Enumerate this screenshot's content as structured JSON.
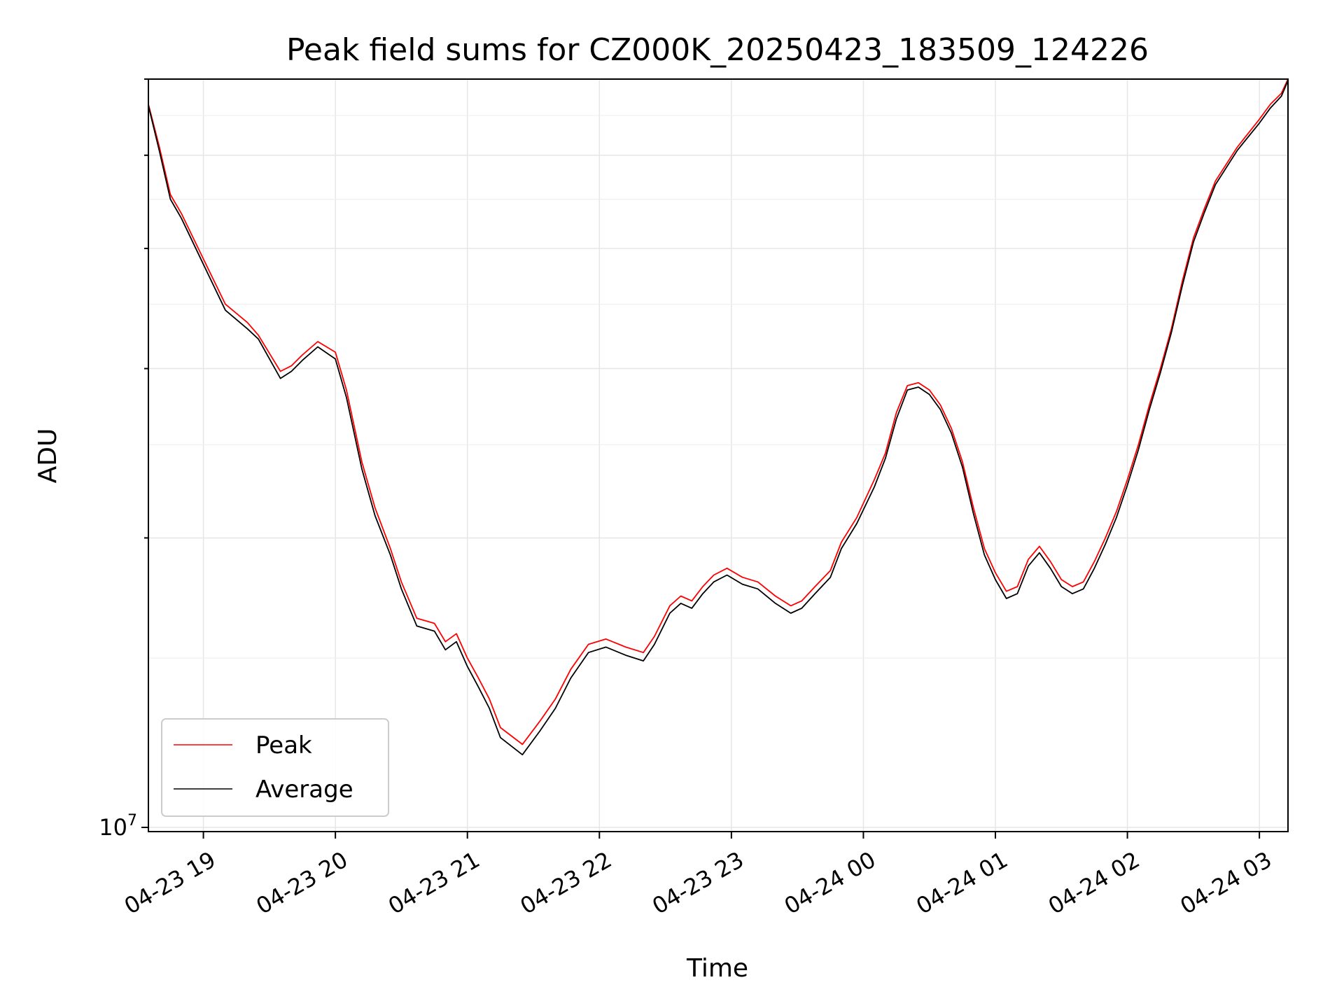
{
  "chart_data": {
    "type": "line",
    "title": "Peak field sums for CZ000K_20250423_183509_124226",
    "xlabel": "Time",
    "ylabel": "ADU",
    "y_scale": "log",
    "ylim": [
      9900000,
      60000000
    ],
    "xlim": [
      "2025-04-23 18:35",
      "2025-04-24 03:13"
    ],
    "grid": true,
    "legend_position": "lower-left",
    "x_ticks": [
      "04-23 19",
      "04-23 20",
      "04-23 21",
      "04-23 22",
      "04-23 23",
      "04-24 00",
      "04-24 01",
      "04-24 02",
      "04-24 03"
    ],
    "y_tick_labels": [
      "10^7"
    ],
    "series": [
      {
        "name": "Peak",
        "color": "#ff0000",
        "x": [
          "2025-04-23 18:35",
          "2025-04-23 18:40",
          "2025-04-23 18:45",
          "2025-04-23 18:50",
          "2025-04-23 19:00",
          "2025-04-23 19:10",
          "2025-04-23 19:20",
          "2025-04-23 19:25",
          "2025-04-23 19:35",
          "2025-04-23 19:40",
          "2025-04-23 19:45",
          "2025-04-23 19:52",
          "2025-04-23 20:00",
          "2025-04-23 20:05",
          "2025-04-23 20:12",
          "2025-04-23 20:18",
          "2025-04-23 20:25",
          "2025-04-23 20:30",
          "2025-04-23 20:37",
          "2025-04-23 20:45",
          "2025-04-23 20:50",
          "2025-04-23 20:55",
          "2025-04-23 21:00",
          "2025-04-23 21:05",
          "2025-04-23 21:10",
          "2025-04-23 21:15",
          "2025-04-23 21:25",
          "2025-04-23 21:33",
          "2025-04-23 21:40",
          "2025-04-23 21:47",
          "2025-04-23 21:55",
          "2025-04-23 22:03",
          "2025-04-23 22:12",
          "2025-04-23 22:20",
          "2025-04-23 22:25",
          "2025-04-23 22:32",
          "2025-04-23 22:37",
          "2025-04-23 22:42",
          "2025-04-23 22:47",
          "2025-04-23 22:52",
          "2025-04-23 22:58",
          "2025-04-23 23:05",
          "2025-04-23 23:12",
          "2025-04-23 23:20",
          "2025-04-23 23:27",
          "2025-04-23 23:32",
          "2025-04-23 23:38",
          "2025-04-23 23:45",
          "2025-04-23 23:50",
          "2025-04-23 23:57",
          "2025-04-24 00:05",
          "2025-04-24 00:10",
          "2025-04-24 00:15",
          "2025-04-24 00:20",
          "2025-04-24 00:25",
          "2025-04-24 00:30",
          "2025-04-24 00:35",
          "2025-04-24 00:40",
          "2025-04-24 00:45",
          "2025-04-24 00:50",
          "2025-04-24 00:55",
          "2025-04-24 01:00",
          "2025-04-24 01:05",
          "2025-04-24 01:10",
          "2025-04-24 01:15",
          "2025-04-24 01:20",
          "2025-04-24 01:25",
          "2025-04-24 01:30",
          "2025-04-24 01:35",
          "2025-04-24 01:40",
          "2025-04-24 01:45",
          "2025-04-24 01:50",
          "2025-04-24 01:55",
          "2025-04-24 02:00",
          "2025-04-24 02:05",
          "2025-04-24 02:10",
          "2025-04-24 02:15",
          "2025-04-24 02:20",
          "2025-04-24 02:25",
          "2025-04-24 02:30",
          "2025-04-24 02:35",
          "2025-04-24 02:40",
          "2025-04-24 02:50",
          "2025-04-24 03:00",
          "2025-04-24 03:05",
          "2025-04-24 03:10",
          "2025-04-24 03:13"
        ],
        "values": [
          56500000,
          51000000,
          45500000,
          43500000,
          39000000,
          35000000,
          33500000,
          32500000,
          29800000,
          30200000,
          31000000,
          32000000,
          31200000,
          28500000,
          24000000,
          21500000,
          19500000,
          18000000,
          16500000,
          16300000,
          15600000,
          15900000,
          15000000,
          14300000,
          13600000,
          12700000,
          12200000,
          12900000,
          13600000,
          14600000,
          15500000,
          15700000,
          15400000,
          15200000,
          15800000,
          17000000,
          17400000,
          17200000,
          17800000,
          18300000,
          18600000,
          18200000,
          18000000,
          17400000,
          17000000,
          17200000,
          17800000,
          18500000,
          19800000,
          21000000,
          23000000,
          24500000,
          27000000,
          28800000,
          29000000,
          28500000,
          27500000,
          26000000,
          24000000,
          21500000,
          19500000,
          18400000,
          17600000,
          17800000,
          19000000,
          19600000,
          18900000,
          18100000,
          17800000,
          18000000,
          18900000,
          20000000,
          21300000,
          23000000,
          25000000,
          27500000,
          30000000,
          33000000,
          37000000,
          41000000,
          44000000,
          47000000,
          51000000,
          54500000,
          56500000,
          58000000,
          60000000
        ]
      },
      {
        "name": "Average",
        "color": "#000000",
        "x": [
          "2025-04-23 18:35",
          "2025-04-23 18:40",
          "2025-04-23 18:45",
          "2025-04-23 18:50",
          "2025-04-23 19:00",
          "2025-04-23 19:10",
          "2025-04-23 19:20",
          "2025-04-23 19:25",
          "2025-04-23 19:35",
          "2025-04-23 19:40",
          "2025-04-23 19:45",
          "2025-04-23 19:52",
          "2025-04-23 20:00",
          "2025-04-23 20:05",
          "2025-04-23 20:12",
          "2025-04-23 20:18",
          "2025-04-23 20:25",
          "2025-04-23 20:30",
          "2025-04-23 20:37",
          "2025-04-23 20:45",
          "2025-04-23 20:50",
          "2025-04-23 20:55",
          "2025-04-23 21:00",
          "2025-04-23 21:05",
          "2025-04-23 21:10",
          "2025-04-23 21:15",
          "2025-04-23 21:25",
          "2025-04-23 21:33",
          "2025-04-23 21:40",
          "2025-04-23 21:47",
          "2025-04-23 21:55",
          "2025-04-23 22:03",
          "2025-04-23 22:12",
          "2025-04-23 22:20",
          "2025-04-23 22:25",
          "2025-04-23 22:32",
          "2025-04-23 22:37",
          "2025-04-23 22:42",
          "2025-04-23 22:47",
          "2025-04-23 22:52",
          "2025-04-23 22:58",
          "2025-04-23 23:05",
          "2025-04-23 23:12",
          "2025-04-23 23:20",
          "2025-04-23 23:27",
          "2025-04-23 23:32",
          "2025-04-23 23:38",
          "2025-04-23 23:45",
          "2025-04-23 23:50",
          "2025-04-23 23:57",
          "2025-04-24 00:05",
          "2025-04-24 00:10",
          "2025-04-24 00:15",
          "2025-04-24 00:20",
          "2025-04-24 00:25",
          "2025-04-24 00:30",
          "2025-04-24 00:35",
          "2025-04-24 00:40",
          "2025-04-24 00:45",
          "2025-04-24 00:50",
          "2025-04-24 00:55",
          "2025-04-24 01:00",
          "2025-04-24 01:05",
          "2025-04-24 01:10",
          "2025-04-24 01:15",
          "2025-04-24 01:20",
          "2025-04-24 01:25",
          "2025-04-24 01:30",
          "2025-04-24 01:35",
          "2025-04-24 01:40",
          "2025-04-24 01:45",
          "2025-04-24 01:50",
          "2025-04-24 01:55",
          "2025-04-24 02:00",
          "2025-04-24 02:05",
          "2025-04-24 02:10",
          "2025-04-24 02:15",
          "2025-04-24 02:20",
          "2025-04-24 02:25",
          "2025-04-24 02:30",
          "2025-04-24 02:35",
          "2025-04-24 02:40",
          "2025-04-24 02:50",
          "2025-04-24 03:00",
          "2025-04-24 03:05",
          "2025-04-24 03:10",
          "2025-04-24 03:13"
        ],
        "values": [
          56300000,
          50500000,
          45000000,
          43000000,
          38500000,
          34500000,
          33000000,
          32200000,
          29300000,
          29800000,
          30600000,
          31600000,
          30700000,
          28000000,
          23600000,
          21100000,
          19200000,
          17700000,
          16200000,
          16000000,
          15300000,
          15600000,
          14700000,
          14000000,
          13300000,
          12400000,
          11900000,
          12600000,
          13300000,
          14300000,
          15200000,
          15400000,
          15100000,
          14900000,
          15500000,
          16700000,
          17100000,
          16900000,
          17500000,
          18000000,
          18300000,
          17900000,
          17700000,
          17100000,
          16700000,
          16900000,
          17500000,
          18200000,
          19500000,
          20700000,
          22600000,
          24200000,
          26600000,
          28500000,
          28700000,
          28200000,
          27200000,
          25700000,
          23700000,
          21200000,
          19200000,
          18100000,
          17300000,
          17500000,
          18700000,
          19300000,
          18600000,
          17800000,
          17500000,
          17700000,
          18600000,
          19700000,
          21000000,
          22700000,
          24700000,
          27200000,
          29700000,
          32700000,
          36600000,
          40600000,
          43600000,
          46600000,
          50600000,
          54000000,
          56000000,
          57600000,
          59800000
        ]
      }
    ]
  },
  "legend": {
    "peak_label": "Peak",
    "average_label": "Average"
  }
}
